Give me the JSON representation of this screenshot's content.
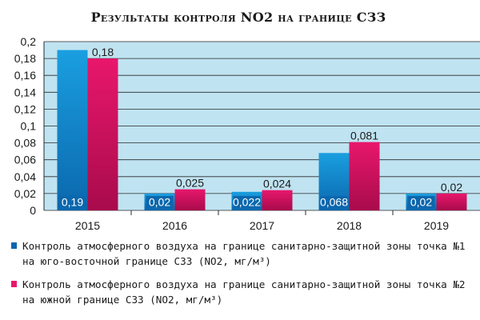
{
  "colors": {
    "plot_bg": "#bfe3f1",
    "series1": "#1a9fe0",
    "series1_dark": "#0b67ad",
    "series2": "#e8176c",
    "series2_dark": "#a80b4b"
  },
  "chart_data": {
    "type": "bar",
    "title": "Результаты контроля NO2 на границе СЗЗ",
    "categories": [
      "2015",
      "2016",
      "2017",
      "2018",
      "2019"
    ],
    "ylim": [
      0,
      0.2
    ],
    "yticks": [
      "0",
      "0,02",
      "0,04",
      "0,06",
      "0,08",
      "0,1",
      "0,12",
      "0,14",
      "0,16",
      "0,18",
      "0,2"
    ],
    "grid": true,
    "legend_position": "bottom",
    "series": [
      {
        "name": "Контроль атмосферного воздуха на границе санитарно-защитной зоны точка №1 на юго-восточной границе СЗЗ (NO2, мг/м³)",
        "values": [
          0.19,
          0.02,
          0.022,
          0.068,
          0.02
        ],
        "labels": [
          "0,19",
          "0,02",
          "0,022",
          "0,068",
          "0,02"
        ]
      },
      {
        "name": "Контроль атмосферного воздуха на границе санитарно-защитной зоны точка №2 на южной границе СЗЗ (NO2, мг/м³)",
        "values": [
          0.18,
          0.025,
          0.024,
          0.081,
          0.02
        ],
        "labels": [
          "0,18",
          "0,025",
          "0,024",
          "0,081",
          "0,02"
        ]
      }
    ]
  }
}
